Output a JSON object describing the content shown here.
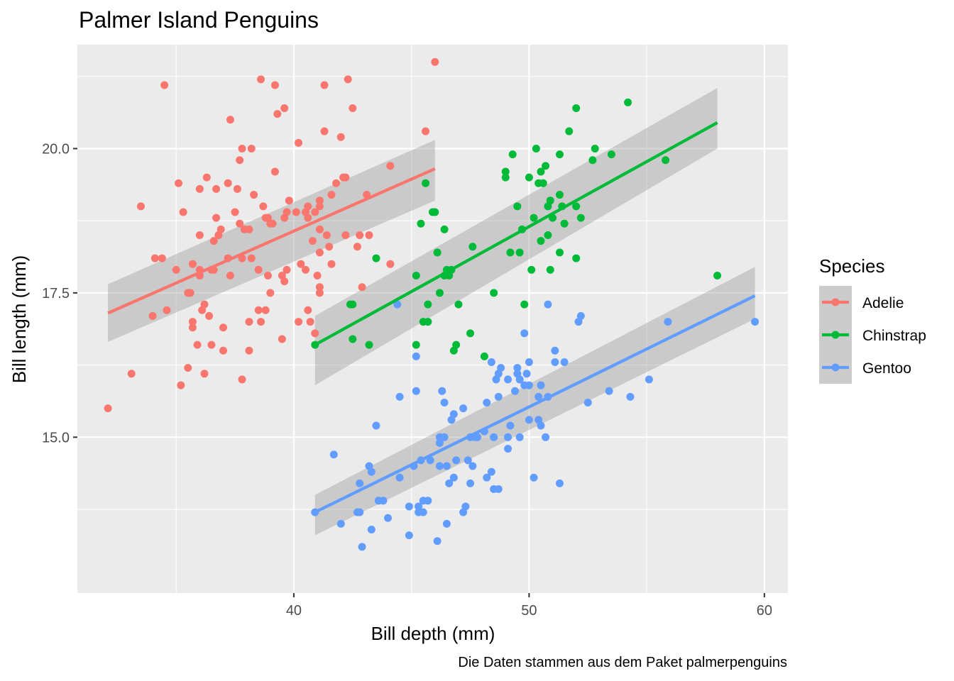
{
  "chart_data": {
    "type": "scatter",
    "title": "Palmer Island Penguins",
    "xlabel": "Bill depth (mm)",
    "ylabel": "Bill length (mm)",
    "caption": "Die Daten stammen aus dem Paket palmerpenguins",
    "legend_title": "Species",
    "legend_position": "right",
    "grid": true,
    "background": "#ebebeb",
    "xlim": [
      30.8,
      61.0
    ],
    "ylim": [
      12.3,
      21.8
    ],
    "x_ticks": [
      40,
      50,
      60
    ],
    "x_tick_labels": [
      "40",
      "50",
      "60"
    ],
    "y_ticks": [
      15.0,
      17.5,
      20.0
    ],
    "y_tick_labels": [
      "15.0",
      "17.5",
      "20.0"
    ],
    "series": [
      {
        "name": "Adelie",
        "color": "#f8766d",
        "trend": {
          "x": [
            32.1,
            46.0
          ],
          "y": [
            17.15,
            19.65
          ],
          "band_lo": [
            16.65,
            19.1
          ],
          "band_hi": [
            17.65,
            20.15
          ]
        },
        "points": [
          [
            32.1,
            15.5
          ],
          [
            33.1,
            16.1
          ],
          [
            33.5,
            19.0
          ],
          [
            34.0,
            17.1
          ],
          [
            34.1,
            18.1
          ],
          [
            34.4,
            18.1
          ],
          [
            34.5,
            21.1
          ],
          [
            34.6,
            17.2
          ],
          [
            35.0,
            17.9
          ],
          [
            35.1,
            19.4
          ],
          [
            35.2,
            15.9
          ],
          [
            35.3,
            18.9
          ],
          [
            35.5,
            16.2
          ],
          [
            35.5,
            17.5
          ],
          [
            35.6,
            17.5
          ],
          [
            35.7,
            18.0
          ],
          [
            35.7,
            16.9
          ],
          [
            35.7,
            17.0
          ],
          [
            35.9,
            16.6
          ],
          [
            36.0,
            18.5
          ],
          [
            36.0,
            17.9
          ],
          [
            36.0,
            19.3
          ],
          [
            36.0,
            17.8
          ],
          [
            36.1,
            17.2
          ],
          [
            36.2,
            17.3
          ],
          [
            36.2,
            16.1
          ],
          [
            36.3,
            19.5
          ],
          [
            36.4,
            17.1
          ],
          [
            36.5,
            17.9
          ],
          [
            36.5,
            16.6
          ],
          [
            36.6,
            17.9
          ],
          [
            36.6,
            18.4
          ],
          [
            36.7,
            18.8
          ],
          [
            36.7,
            19.3
          ],
          [
            36.8,
            18.5
          ],
          [
            36.9,
            18.6
          ],
          [
            37.0,
            16.9
          ],
          [
            37.0,
            16.5
          ],
          [
            37.2,
            18.1
          ],
          [
            37.2,
            19.4
          ],
          [
            37.3,
            17.8
          ],
          [
            37.3,
            20.5
          ],
          [
            37.5,
            18.9
          ],
          [
            37.6,
            19.3
          ],
          [
            37.7,
            18.7
          ],
          [
            37.7,
            19.8
          ],
          [
            37.8,
            16.0
          ],
          [
            37.8,
            18.1
          ],
          [
            37.8,
            20.0
          ],
          [
            37.9,
            18.6
          ],
          [
            38.1,
            17.0
          ],
          [
            38.1,
            18.6
          ],
          [
            38.1,
            16.5
          ],
          [
            38.2,
            18.1
          ],
          [
            38.2,
            20.0
          ],
          [
            38.3,
            19.2
          ],
          [
            38.5,
            17.9
          ],
          [
            38.5,
            17.2
          ],
          [
            38.6,
            21.2
          ],
          [
            38.6,
            17.0
          ],
          [
            38.7,
            19.0
          ],
          [
            38.8,
            17.2
          ],
          [
            38.8,
            18.8
          ],
          [
            38.9,
            17.8
          ],
          [
            38.9,
            18.8
          ],
          [
            39.0,
            17.5
          ],
          [
            39.0,
            18.7
          ],
          [
            39.1,
            18.7
          ],
          [
            39.2,
            21.1
          ],
          [
            39.2,
            19.6
          ],
          [
            39.3,
            20.6
          ],
          [
            39.5,
            17.8
          ],
          [
            39.5,
            16.7
          ],
          [
            39.6,
            17.7
          ],
          [
            39.6,
            20.7
          ],
          [
            39.6,
            18.8
          ],
          [
            39.7,
            18.9
          ],
          [
            39.7,
            17.9
          ],
          [
            39.8,
            19.1
          ],
          [
            40.1,
            18.9
          ],
          [
            40.2,
            20.1
          ],
          [
            40.2,
            17.0
          ],
          [
            40.3,
            18.0
          ],
          [
            40.5,
            18.9
          ],
          [
            40.5,
            17.9
          ],
          [
            40.6,
            18.8
          ],
          [
            40.6,
            19.0
          ],
          [
            40.6,
            17.2
          ],
          [
            40.7,
            17.0
          ],
          [
            40.8,
            18.4
          ],
          [
            40.9,
            16.8
          ],
          [
            40.9,
            18.9
          ],
          [
            41.0,
            17.8
          ],
          [
            41.1,
            19.1
          ],
          [
            41.1,
            18.6
          ],
          [
            41.1,
            17.6
          ],
          [
            41.1,
            17.5
          ],
          [
            41.1,
            18.2
          ],
          [
            41.1,
            19.0
          ],
          [
            41.3,
            21.1
          ],
          [
            41.3,
            20.3
          ],
          [
            41.4,
            18.5
          ],
          [
            41.5,
            18.3
          ],
          [
            41.6,
            18.0
          ],
          [
            41.6,
            19.2
          ],
          [
            41.8,
            19.4
          ],
          [
            42.0,
            20.2
          ],
          [
            42.1,
            19.5
          ],
          [
            42.2,
            18.5
          ],
          [
            42.2,
            19.5
          ],
          [
            42.3,
            21.2
          ],
          [
            42.5,
            20.7
          ],
          [
            42.7,
            18.3
          ],
          [
            42.8,
            18.5
          ],
          [
            42.9,
            17.6
          ],
          [
            43.1,
            19.2
          ],
          [
            43.2,
            18.5
          ],
          [
            44.1,
            18.0
          ],
          [
            44.1,
            19.7
          ],
          [
            45.6,
            20.3
          ],
          [
            46.0,
            21.5
          ]
        ]
      },
      {
        "name": "Chinstrap",
        "color": "#00ba38",
        "trend": {
          "x": [
            40.9,
            58.0
          ],
          "y": [
            16.6,
            20.45
          ],
          "band_lo": [
            15.9,
            20.0
          ],
          "band_hi": [
            17.1,
            21.05
          ]
        },
        "points": [
          [
            40.9,
            16.6
          ],
          [
            42.4,
            17.3
          ],
          [
            42.5,
            16.7
          ],
          [
            42.5,
            17.3
          ],
          [
            43.2,
            16.6
          ],
          [
            43.5,
            18.1
          ],
          [
            45.2,
            17.8
          ],
          [
            45.2,
            16.6
          ],
          [
            45.4,
            18.7
          ],
          [
            45.5,
            17.0
          ],
          [
            45.6,
            19.4
          ],
          [
            45.7,
            17.0
          ],
          [
            45.7,
            17.3
          ],
          [
            45.9,
            18.9
          ],
          [
            46.0,
            18.9
          ],
          [
            46.1,
            18.2
          ],
          [
            46.2,
            17.5
          ],
          [
            46.4,
            17.8
          ],
          [
            46.4,
            18.6
          ],
          [
            46.5,
            17.9
          ],
          [
            46.6,
            17.8
          ],
          [
            46.7,
            17.9
          ],
          [
            46.8,
            16.5
          ],
          [
            46.9,
            16.6
          ],
          [
            47.0,
            17.3
          ],
          [
            47.5,
            16.8
          ],
          [
            47.6,
            18.3
          ],
          [
            48.1,
            16.4
          ],
          [
            48.5,
            17.5
          ],
          [
            49.0,
            19.5
          ],
          [
            49.0,
            19.6
          ],
          [
            49.2,
            18.2
          ],
          [
            49.3,
            19.9
          ],
          [
            49.5,
            19.0
          ],
          [
            49.6,
            18.2
          ],
          [
            49.7,
            18.6
          ],
          [
            49.8,
            17.3
          ],
          [
            50.0,
            19.5
          ],
          [
            50.1,
            17.9
          ],
          [
            50.2,
            18.8
          ],
          [
            50.3,
            20.0
          ],
          [
            50.4,
            19.4
          ],
          [
            50.5,
            19.6
          ],
          [
            50.5,
            18.4
          ],
          [
            50.6,
            19.4
          ],
          [
            50.7,
            19.7
          ],
          [
            50.8,
            18.5
          ],
          [
            50.8,
            19.0
          ],
          [
            50.9,
            19.1
          ],
          [
            50.9,
            17.9
          ],
          [
            51.0,
            18.8
          ],
          [
            51.3,
            19.2
          ],
          [
            51.3,
            19.9
          ],
          [
            51.3,
            18.2
          ],
          [
            51.4,
            19.0
          ],
          [
            51.5,
            18.7
          ],
          [
            51.7,
            20.3
          ],
          [
            52.0,
            18.1
          ],
          [
            52.0,
            20.7
          ],
          [
            52.0,
            19.0
          ],
          [
            52.2,
            18.8
          ],
          [
            52.7,
            19.8
          ],
          [
            52.8,
            20.0
          ],
          [
            53.5,
            19.9
          ],
          [
            54.2,
            20.8
          ],
          [
            55.8,
            19.8
          ],
          [
            58.0,
            17.8
          ]
        ]
      },
      {
        "name": "Gentoo",
        "color": "#619cff",
        "trend": {
          "x": [
            40.9,
            59.6
          ],
          "y": [
            13.7,
            17.45
          ],
          "band_lo": [
            13.3,
            17.05
          ],
          "band_hi": [
            14.0,
            17.95
          ]
        },
        "points": [
          [
            40.9,
            13.7
          ],
          [
            41.7,
            14.7
          ],
          [
            42.0,
            13.5
          ],
          [
            42.7,
            13.7
          ],
          [
            42.8,
            14.2
          ],
          [
            42.8,
            13.7
          ],
          [
            42.9,
            13.1
          ],
          [
            43.2,
            14.5
          ],
          [
            43.3,
            13.4
          ],
          [
            43.3,
            14.4
          ],
          [
            43.5,
            15.2
          ],
          [
            43.6,
            13.9
          ],
          [
            43.8,
            13.9
          ],
          [
            44.0,
            13.6
          ],
          [
            44.4,
            17.3
          ],
          [
            44.5,
            14.3
          ],
          [
            44.5,
            15.7
          ],
          [
            44.9,
            13.3
          ],
          [
            44.9,
            13.8
          ],
          [
            45.1,
            14.5
          ],
          [
            45.2,
            15.8
          ],
          [
            45.2,
            16.4
          ],
          [
            45.3,
            13.7
          ],
          [
            45.3,
            13.8
          ],
          [
            45.4,
            14.6
          ],
          [
            45.5,
            13.7
          ],
          [
            45.5,
            13.9
          ],
          [
            45.7,
            13.9
          ],
          [
            45.8,
            14.6
          ],
          [
            46.1,
            13.2
          ],
          [
            46.2,
            14.9
          ],
          [
            46.2,
            15.0
          ],
          [
            46.2,
            14.5
          ],
          [
            46.3,
            15.8
          ],
          [
            46.4,
            15.6
          ],
          [
            46.4,
            15.0
          ],
          [
            46.5,
            14.5
          ],
          [
            46.5,
            13.5
          ],
          [
            46.6,
            14.2
          ],
          [
            46.7,
            15.3
          ],
          [
            46.8,
            14.3
          ],
          [
            46.8,
            15.4
          ],
          [
            46.9,
            14.6
          ],
          [
            47.2,
            13.7
          ],
          [
            47.2,
            15.5
          ],
          [
            47.3,
            13.8
          ],
          [
            47.4,
            14.6
          ],
          [
            47.5,
            14.2
          ],
          [
            47.5,
            15.0
          ],
          [
            47.6,
            14.5
          ],
          [
            47.7,
            15.0
          ],
          [
            47.8,
            15.0
          ],
          [
            48.1,
            15.1
          ],
          [
            48.2,
            14.3
          ],
          [
            48.2,
            15.6
          ],
          [
            48.4,
            14.4
          ],
          [
            48.4,
            16.3
          ],
          [
            48.5,
            14.1
          ],
          [
            48.5,
            15.0
          ],
          [
            48.6,
            16.0
          ],
          [
            48.7,
            14.1
          ],
          [
            48.7,
            15.7
          ],
          [
            48.7,
            16.1
          ],
          [
            48.8,
            16.2
          ],
          [
            49.1,
            14.8
          ],
          [
            49.1,
            15.0
          ],
          [
            49.1,
            16.0
          ],
          [
            49.2,
            15.2
          ],
          [
            49.4,
            15.8
          ],
          [
            49.5,
            16.2
          ],
          [
            49.5,
            16.1
          ],
          [
            49.6,
            16.0
          ],
          [
            49.6,
            15.0
          ],
          [
            49.8,
            15.9
          ],
          [
            49.8,
            16.8
          ],
          [
            49.9,
            16.1
          ],
          [
            50.0,
            15.3
          ],
          [
            50.0,
            15.9
          ],
          [
            50.0,
            16.3
          ],
          [
            50.2,
            14.3
          ],
          [
            50.4,
            15.7
          ],
          [
            50.4,
            15.3
          ],
          [
            50.5,
            15.2
          ],
          [
            50.5,
            15.9
          ],
          [
            50.7,
            15.0
          ],
          [
            50.8,
            15.7
          ],
          [
            50.8,
            17.3
          ],
          [
            51.1,
            16.5
          ],
          [
            51.1,
            16.3
          ],
          [
            51.3,
            14.2
          ],
          [
            51.5,
            16.3
          ],
          [
            52.1,
            17.0
          ],
          [
            52.2,
            17.1
          ],
          [
            52.5,
            15.6
          ],
          [
            53.4,
            15.8
          ],
          [
            54.3,
            15.7
          ],
          [
            55.1,
            16.0
          ],
          [
            55.9,
            17.0
          ],
          [
            59.6,
            17.0
          ]
        ]
      }
    ]
  }
}
